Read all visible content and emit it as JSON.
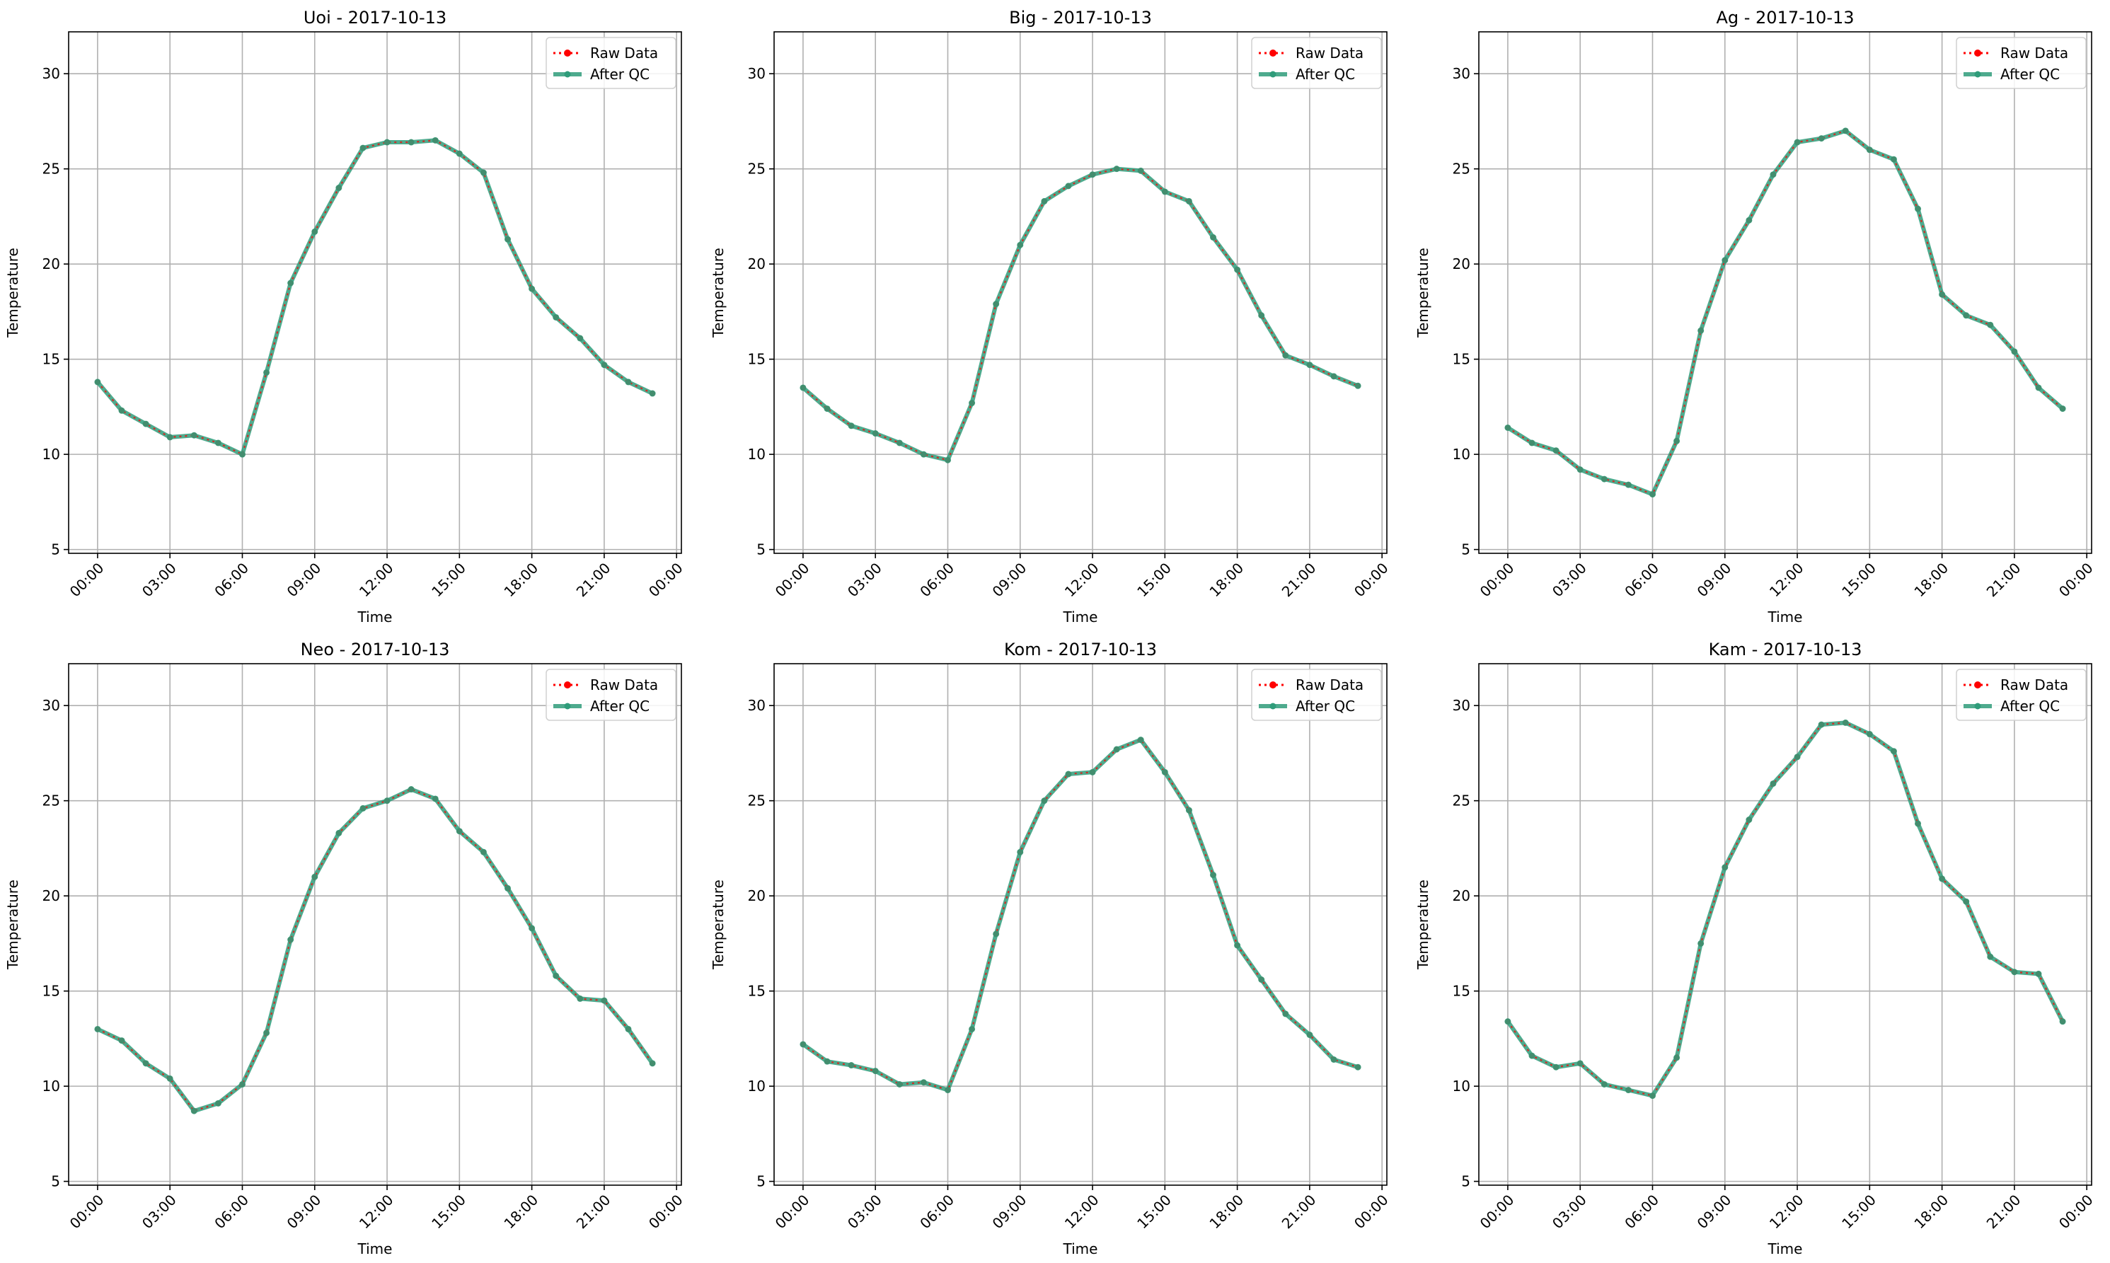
{
  "legend_labels": {
    "raw": "Raw Data",
    "qc": "After QC"
  },
  "colors": {
    "raw": "#ff0000",
    "qc": "#2f9c7a",
    "grid": "#b0b0b0",
    "axis": "#000000"
  },
  "chart_data": [
    {
      "type": "line",
      "title": "Uoi - 2017-10-13",
      "xlabel": "Time",
      "ylabel": "Temperature",
      "x_ticks": [
        "00:00",
        "03:00",
        "06:00",
        "09:00",
        "12:00",
        "15:00",
        "18:00",
        "21:00",
        "00:00"
      ],
      "x_hours": [
        0,
        3,
        6,
        9,
        12,
        15,
        18,
        21,
        24
      ],
      "y_ticks": [
        5,
        10,
        15,
        20,
        25,
        30
      ],
      "xlim": [
        -1.2,
        24.2
      ],
      "ylim": [
        4.8,
        32.2
      ],
      "grid": true,
      "legend_position": "top-right",
      "x": [
        0,
        1,
        2,
        3,
        4,
        5,
        6,
        7,
        8,
        9,
        10,
        11,
        12,
        13,
        14,
        15,
        16,
        17,
        18,
        19,
        20,
        21,
        22,
        23
      ],
      "series": [
        {
          "name": "Raw Data",
          "values": [
            13.8,
            12.3,
            11.6,
            10.9,
            11.0,
            10.6,
            10.0,
            14.3,
            19.0,
            21.7,
            24.0,
            26.1,
            26.4,
            26.4,
            26.5,
            25.8,
            24.8,
            21.3,
            18.7,
            17.2,
            16.1,
            14.7,
            13.8,
            13.2
          ]
        },
        {
          "name": "After QC",
          "values": [
            13.8,
            12.3,
            11.6,
            10.9,
            11.0,
            10.6,
            10.0,
            14.3,
            19.0,
            21.7,
            24.0,
            26.1,
            26.4,
            26.4,
            26.5,
            25.8,
            24.8,
            21.3,
            18.7,
            17.2,
            16.1,
            14.7,
            13.8,
            13.2
          ]
        }
      ]
    },
    {
      "type": "line",
      "title": "Big - 2017-10-13",
      "xlabel": "Time",
      "ylabel": "Temperature",
      "x_ticks": [
        "00:00",
        "03:00",
        "06:00",
        "09:00",
        "12:00",
        "15:00",
        "18:00",
        "21:00",
        "00:00"
      ],
      "x_hours": [
        0,
        3,
        6,
        9,
        12,
        15,
        18,
        21,
        24
      ],
      "y_ticks": [
        5,
        10,
        15,
        20,
        25,
        30
      ],
      "xlim": [
        -1.2,
        24.2
      ],
      "ylim": [
        4.8,
        32.2
      ],
      "grid": true,
      "legend_position": "top-right",
      "x": [
        0,
        1,
        2,
        3,
        4,
        5,
        6,
        7,
        8,
        9,
        10,
        11,
        12,
        13,
        14,
        15,
        16,
        17,
        18,
        19,
        20,
        21,
        22,
        23
      ],
      "series": [
        {
          "name": "Raw Data",
          "values": [
            13.5,
            12.4,
            11.5,
            11.1,
            10.6,
            10.0,
            9.7,
            12.7,
            17.9,
            21.0,
            23.3,
            24.1,
            24.7,
            25.0,
            24.9,
            23.8,
            23.3,
            21.4,
            19.7,
            17.3,
            15.2,
            14.7,
            14.1,
            13.6
          ]
        },
        {
          "name": "After QC",
          "values": [
            13.5,
            12.4,
            11.5,
            11.1,
            10.6,
            10.0,
            9.7,
            12.7,
            17.9,
            21.0,
            23.3,
            24.1,
            24.7,
            25.0,
            24.9,
            23.8,
            23.3,
            21.4,
            19.7,
            17.3,
            15.2,
            14.7,
            14.1,
            13.6
          ]
        }
      ]
    },
    {
      "type": "line",
      "title": "Ag - 2017-10-13",
      "xlabel": "Time",
      "ylabel": "Temperature",
      "x_ticks": [
        "00:00",
        "03:00",
        "06:00",
        "09:00",
        "12:00",
        "15:00",
        "18:00",
        "21:00",
        "00:00"
      ],
      "x_hours": [
        0,
        3,
        6,
        9,
        12,
        15,
        18,
        21,
        24
      ],
      "y_ticks": [
        5,
        10,
        15,
        20,
        25,
        30
      ],
      "xlim": [
        -1.2,
        24.2
      ],
      "ylim": [
        4.8,
        32.2
      ],
      "grid": true,
      "legend_position": "top-right",
      "x": [
        0,
        1,
        2,
        3,
        4,
        5,
        6,
        7,
        8,
        9,
        10,
        11,
        12,
        13,
        14,
        15,
        16,
        17,
        18,
        19,
        20,
        21,
        22,
        23
      ],
      "series": [
        {
          "name": "Raw Data",
          "values": [
            11.4,
            10.6,
            10.2,
            9.2,
            8.7,
            8.4,
            7.9,
            10.7,
            16.5,
            20.2,
            22.3,
            24.7,
            26.4,
            26.6,
            27.0,
            26.0,
            25.5,
            22.9,
            18.4,
            17.3,
            16.8,
            15.4,
            13.5,
            12.4
          ]
        },
        {
          "name": "After QC",
          "values": [
            11.4,
            10.6,
            10.2,
            9.2,
            8.7,
            8.4,
            7.9,
            10.7,
            16.5,
            20.2,
            22.3,
            24.7,
            26.4,
            26.6,
            27.0,
            26.0,
            25.5,
            22.9,
            18.4,
            17.3,
            16.8,
            15.4,
            13.5,
            12.4
          ]
        }
      ]
    },
    {
      "type": "line",
      "title": "Neo - 2017-10-13",
      "xlabel": "Time",
      "ylabel": "Temperature",
      "x_ticks": [
        "00:00",
        "03:00",
        "06:00",
        "09:00",
        "12:00",
        "15:00",
        "18:00",
        "21:00",
        "00:00"
      ],
      "x_hours": [
        0,
        3,
        6,
        9,
        12,
        15,
        18,
        21,
        24
      ],
      "y_ticks": [
        5,
        10,
        15,
        20,
        25,
        30
      ],
      "xlim": [
        -1.2,
        24.2
      ],
      "ylim": [
        4.8,
        32.2
      ],
      "grid": true,
      "legend_position": "top-right",
      "x": [
        0,
        1,
        2,
        3,
        4,
        5,
        6,
        7,
        8,
        9,
        10,
        11,
        12,
        13,
        14,
        15,
        16,
        17,
        18,
        19,
        20,
        21,
        22,
        23
      ],
      "series": [
        {
          "name": "Raw Data",
          "values": [
            13.0,
            12.4,
            11.2,
            10.4,
            8.7,
            9.1,
            10.1,
            12.8,
            17.7,
            21.0,
            23.3,
            24.6,
            25.0,
            25.6,
            25.1,
            23.4,
            22.3,
            20.4,
            18.3,
            15.8,
            14.6,
            14.5,
            13.0,
            11.2
          ]
        },
        {
          "name": "After QC",
          "values": [
            13.0,
            12.4,
            11.2,
            10.4,
            8.7,
            9.1,
            10.1,
            12.8,
            17.7,
            21.0,
            23.3,
            24.6,
            25.0,
            25.6,
            25.1,
            23.4,
            22.3,
            20.4,
            18.3,
            15.8,
            14.6,
            14.5,
            13.0,
            11.2
          ]
        }
      ]
    },
    {
      "type": "line",
      "title": "Kom - 2017-10-13",
      "xlabel": "Time",
      "ylabel": "Temperature",
      "x_ticks": [
        "00:00",
        "03:00",
        "06:00",
        "09:00",
        "12:00",
        "15:00",
        "18:00",
        "21:00",
        "00:00"
      ],
      "x_hours": [
        0,
        3,
        6,
        9,
        12,
        15,
        18,
        21,
        24
      ],
      "y_ticks": [
        5,
        10,
        15,
        20,
        25,
        30
      ],
      "xlim": [
        -1.2,
        24.2
      ],
      "ylim": [
        4.8,
        32.2
      ],
      "grid": true,
      "legend_position": "top-right",
      "x": [
        0,
        1,
        2,
        3,
        4,
        5,
        6,
        7,
        8,
        9,
        10,
        11,
        12,
        13,
        14,
        15,
        16,
        17,
        18,
        19,
        20,
        21,
        22,
        23
      ],
      "series": [
        {
          "name": "Raw Data",
          "values": [
            12.2,
            11.3,
            11.1,
            10.8,
            10.1,
            10.2,
            9.8,
            13.0,
            18.0,
            22.3,
            25.0,
            26.4,
            26.5,
            27.7,
            28.2,
            26.5,
            24.5,
            21.1,
            17.4,
            15.6,
            13.8,
            12.7,
            11.4,
            11.0
          ]
        },
        {
          "name": "After QC",
          "values": [
            12.2,
            11.3,
            11.1,
            10.8,
            10.1,
            10.2,
            9.8,
            13.0,
            18.0,
            22.3,
            25.0,
            26.4,
            26.5,
            27.7,
            28.2,
            26.5,
            24.5,
            21.1,
            17.4,
            15.6,
            13.8,
            12.7,
            11.4,
            11.0
          ]
        }
      ]
    },
    {
      "type": "line",
      "title": "Kam - 2017-10-13",
      "xlabel": "Time",
      "ylabel": "Temperature",
      "x_ticks": [
        "00:00",
        "03:00",
        "06:00",
        "09:00",
        "12:00",
        "15:00",
        "18:00",
        "21:00",
        "00:00"
      ],
      "x_hours": [
        0,
        3,
        6,
        9,
        12,
        15,
        18,
        21,
        24
      ],
      "y_ticks": [
        5,
        10,
        15,
        20,
        25,
        30
      ],
      "xlim": [
        -1.2,
        24.2
      ],
      "ylim": [
        4.8,
        32.2
      ],
      "grid": true,
      "legend_position": "top-right",
      "x": [
        0,
        1,
        2,
        3,
        4,
        5,
        6,
        7,
        8,
        9,
        10,
        11,
        12,
        13,
        14,
        15,
        16,
        17,
        18,
        19,
        20,
        21,
        22,
        23
      ],
      "series": [
        {
          "name": "Raw Data",
          "values": [
            13.4,
            11.6,
            11.0,
            11.2,
            10.1,
            9.8,
            9.5,
            11.5,
            17.5,
            21.5,
            24.0,
            25.9,
            27.3,
            29.0,
            29.1,
            28.5,
            27.6,
            23.8,
            20.9,
            19.7,
            16.8,
            16.0,
            15.9,
            13.4
          ]
        },
        {
          "name": "After QC",
          "values": [
            13.4,
            11.6,
            11.0,
            11.2,
            10.1,
            9.8,
            9.5,
            11.5,
            17.5,
            21.5,
            24.0,
            25.9,
            27.3,
            29.0,
            29.1,
            28.5,
            27.6,
            23.8,
            20.9,
            19.7,
            16.8,
            16.0,
            15.9,
            13.4
          ]
        }
      ]
    }
  ]
}
